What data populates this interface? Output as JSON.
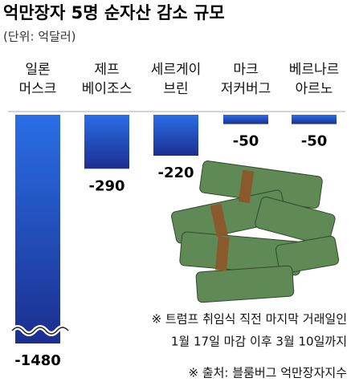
{
  "chart_data": {
    "type": "bar",
    "title": "억만장자 5명 순자산 감소 규모",
    "subtitle": "(단위: 억달러)",
    "categories": [
      "일론\n머스크",
      "제프\n베이조스",
      "세르게이\n브린",
      "마크\n저커버그",
      "베르나르\n아르노"
    ],
    "values": [
      -1480,
      -290,
      -220,
      -50,
      -50
    ],
    "color": "#1f4fc8",
    "annotations": [
      "※ 트럼프 취임식 직전 마지막 거래일인",
      "1월 17일 마감 이후 3월 10일까지",
      "※ 출처: 블룸버그 억만장자지수"
    ]
  }
}
